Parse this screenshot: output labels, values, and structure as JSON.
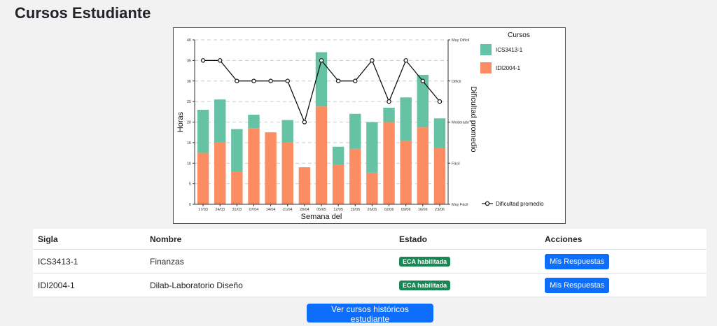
{
  "page": {
    "title": "Cursos Estudiante"
  },
  "chart_data": {
    "type": "bar",
    "stacked": true,
    "categories": [
      "17/03",
      "24/03",
      "31/03",
      "07/04",
      "14/04",
      "21/04",
      "28/04",
      "05/05",
      "12/05",
      "19/05",
      "26/05",
      "02/06",
      "09/06",
      "16/06",
      "23/06"
    ],
    "series": [
      {
        "name": "IDI2004-1",
        "color": "#fc8d62",
        "values": [
          12.5,
          15,
          8,
          18.5,
          17.5,
          15,
          9,
          23.8,
          9.7,
          13.5,
          7.7,
          20,
          15.5,
          18.7,
          13.7
        ]
      },
      {
        "name": "ICS3413-1",
        "color": "#66c2a5",
        "values": [
          10.5,
          10.5,
          10.3,
          3.3,
          0,
          5.5,
          0,
          13.2,
          4.3,
          8.5,
          12.3,
          3.5,
          10.5,
          12.8,
          7.2
        ]
      }
    ],
    "line": {
      "name": "Dificultad promedio",
      "levels": [
        "Muy Fácil",
        "Fácil",
        "Moderado",
        "Difícil",
        "Muy Difícil"
      ],
      "values": [
        3.5,
        3.5,
        3,
        3,
        3,
        3,
        2,
        3.5,
        3,
        3,
        3.5,
        2.5,
        3.5,
        3,
        2.5
      ]
    },
    "xlabel": "Semana del",
    "ylabel": "Horas",
    "y2label": "Dificultad promedio",
    "ylim": [
      0,
      40
    ],
    "yticks": [
      0,
      5,
      10,
      15,
      20,
      25,
      30,
      35,
      40
    ],
    "legend_title": "Cursos",
    "legend_position": "right",
    "grid": true
  },
  "table": {
    "headers": {
      "sigla": "Sigla",
      "nombre": "Nombre",
      "estado": "Estado",
      "acciones": "Acciones"
    },
    "rows": [
      {
        "sigla": "ICS3413-1",
        "nombre": "Finanzas",
        "estado": "ECA habilitada",
        "accion": "Mis Respuestas"
      },
      {
        "sigla": "IDI2004-1",
        "nombre": "Dilab-Laboratorio Diseño",
        "estado": "ECA habilitada",
        "accion": "Mis Respuestas"
      }
    ]
  },
  "footer_button": "Ver cursos históricos estudiante"
}
